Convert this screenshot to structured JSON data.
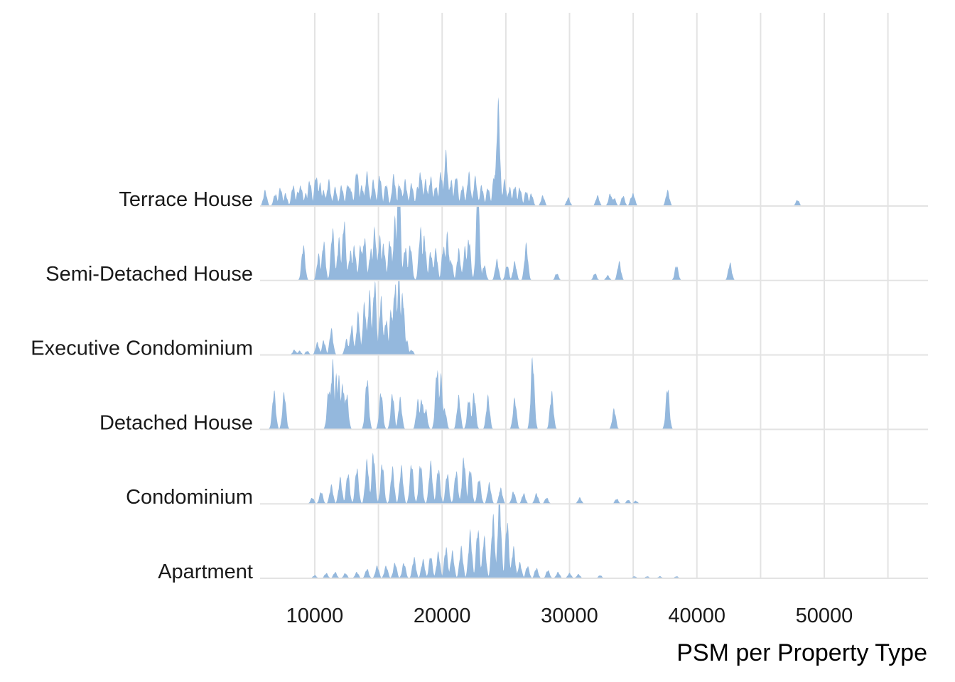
{
  "chart_data": {
    "type": "area",
    "subtype": "ridgeline",
    "title": "",
    "xlabel": "PSM per Property Type",
    "ylabel": "",
    "xlim": [
      5800,
      58000
    ],
    "xticks": [
      10000,
      20000,
      30000,
      40000,
      50000
    ],
    "xtick_labels": [
      "10000",
      "20000",
      "30000",
      "40000",
      "50000"
    ],
    "grid": true,
    "legend": "none",
    "fill_color": "#94b8dd",
    "categories": [
      "Terrace House",
      "Semi-Detached House",
      "Executive Condominium",
      "Detached House",
      "Condominium",
      "Apartment"
    ],
    "series": [
      {
        "name": "Terrace House",
        "peaks": [
          [
            6100,
            0.15
          ],
          [
            6900,
            0.12
          ],
          [
            7300,
            0.18
          ],
          [
            7700,
            0.12
          ],
          [
            8300,
            0.2
          ],
          [
            8700,
            0.15
          ],
          [
            8900,
            0.2
          ],
          [
            9300,
            0.12
          ],
          [
            9600,
            0.25
          ],
          [
            10100,
            0.3
          ],
          [
            10400,
            0.22
          ],
          [
            10700,
            0.15
          ],
          [
            11100,
            0.25
          ],
          [
            11600,
            0.18
          ],
          [
            12100,
            0.2
          ],
          [
            12600,
            0.22
          ],
          [
            12800,
            0.18
          ],
          [
            13300,
            0.35
          ],
          [
            13700,
            0.2
          ],
          [
            14100,
            0.32
          ],
          [
            14600,
            0.25
          ],
          [
            15100,
            0.3
          ],
          [
            15600,
            0.22
          ],
          [
            16200,
            0.3
          ],
          [
            16700,
            0.2
          ],
          [
            17100,
            0.25
          ],
          [
            17600,
            0.22
          ],
          [
            18100,
            0.2
          ],
          [
            18300,
            0.33
          ],
          [
            18700,
            0.25
          ],
          [
            19100,
            0.28
          ],
          [
            19500,
            0.2
          ],
          [
            19900,
            0.33
          ],
          [
            20300,
            0.52
          ],
          [
            20700,
            0.25
          ],
          [
            21100,
            0.3
          ],
          [
            21600,
            0.2
          ],
          [
            22100,
            0.32
          ],
          [
            22600,
            0.28
          ],
          [
            23100,
            0.2
          ],
          [
            23600,
            0.18
          ],
          [
            24100,
            0.32
          ],
          [
            24400,
            1.0
          ],
          [
            24900,
            0.25
          ],
          [
            25300,
            0.18
          ],
          [
            25700,
            0.2
          ],
          [
            26100,
            0.18
          ],
          [
            26600,
            0.15
          ],
          [
            27000,
            0.12
          ],
          [
            27900,
            0.1
          ],
          [
            29900,
            0.08
          ],
          [
            32200,
            0.1
          ],
          [
            33200,
            0.12
          ],
          [
            33500,
            0.08
          ],
          [
            34200,
            0.1
          ],
          [
            34900,
            0.1
          ],
          [
            35000,
            0.12
          ],
          [
            37700,
            0.15
          ],
          [
            47900,
            0.06
          ]
        ]
      },
      {
        "name": "Semi-Detached House",
        "peaks": [
          [
            9100,
            0.34
          ],
          [
            10300,
            0.25
          ],
          [
            10700,
            0.38
          ],
          [
            11400,
            0.5
          ],
          [
            11900,
            0.4
          ],
          [
            12300,
            0.58
          ],
          [
            12800,
            0.28
          ],
          [
            13100,
            0.33
          ],
          [
            13600,
            0.35
          ],
          [
            13900,
            0.42
          ],
          [
            14400,
            0.3
          ],
          [
            14700,
            0.5
          ],
          [
            15100,
            0.42
          ],
          [
            15400,
            0.35
          ],
          [
            15900,
            0.4
          ],
          [
            16300,
            0.6
          ],
          [
            16600,
            1.0
          ],
          [
            17100,
            0.33
          ],
          [
            17500,
            0.35
          ],
          [
            18300,
            0.5
          ],
          [
            18600,
            0.42
          ],
          [
            19100,
            0.28
          ],
          [
            19500,
            0.3
          ],
          [
            20100,
            0.33
          ],
          [
            20400,
            0.45
          ],
          [
            20700,
            0.2
          ],
          [
            21300,
            0.3
          ],
          [
            21800,
            0.32
          ],
          [
            22100,
            0.42
          ],
          [
            22800,
            0.85
          ],
          [
            23300,
            0.15
          ],
          [
            24300,
            0.2
          ],
          [
            25100,
            0.15
          ],
          [
            25700,
            0.18
          ],
          [
            26600,
            0.35
          ],
          [
            29000,
            0.07
          ],
          [
            32000,
            0.07
          ],
          [
            33000,
            0.05
          ],
          [
            33900,
            0.18
          ],
          [
            38400,
            0.15
          ],
          [
            42600,
            0.17
          ]
        ]
      },
      {
        "name": "Executive Condominium",
        "peaks": [
          [
            8400,
            0.05
          ],
          [
            8800,
            0.04
          ],
          [
            9400,
            0.04
          ],
          [
            10200,
            0.12
          ],
          [
            10700,
            0.14
          ],
          [
            11300,
            0.25
          ],
          [
            12500,
            0.15
          ],
          [
            12900,
            0.28
          ],
          [
            13400,
            0.4
          ],
          [
            13900,
            0.5
          ],
          [
            14300,
            0.6
          ],
          [
            14700,
            0.72
          ],
          [
            15200,
            0.55
          ],
          [
            15600,
            0.35
          ],
          [
            16000,
            0.45
          ],
          [
            16300,
            0.7
          ],
          [
            16600,
            0.78
          ],
          [
            16900,
            0.6
          ],
          [
            17200,
            0.15
          ],
          [
            17600,
            0.05
          ]
        ]
      },
      {
        "name": "Detached House",
        "peaks": [
          [
            6800,
            0.37
          ],
          [
            7600,
            0.36
          ],
          [
            11100,
            0.4
          ],
          [
            11400,
            0.66
          ],
          [
            11700,
            0.52
          ],
          [
            11900,
            0.5
          ],
          [
            12200,
            0.45
          ],
          [
            12500,
            0.35
          ],
          [
            14100,
            0.5
          ],
          [
            15200,
            0.37
          ],
          [
            16100,
            0.35
          ],
          [
            16700,
            0.3
          ],
          [
            18100,
            0.28
          ],
          [
            18400,
            0.3
          ],
          [
            18700,
            0.2
          ],
          [
            19600,
            0.6
          ],
          [
            19900,
            0.52
          ],
          [
            20200,
            0.2
          ],
          [
            21300,
            0.32
          ],
          [
            22100,
            0.3
          ],
          [
            22500,
            0.35
          ],
          [
            23600,
            0.32
          ],
          [
            25700,
            0.3
          ],
          [
            27100,
            0.7
          ],
          [
            28600,
            0.36
          ],
          [
            33500,
            0.2
          ],
          [
            37700,
            0.42
          ]
        ]
      },
      {
        "name": "Condominium",
        "peaks": [
          [
            9800,
            0.06
          ],
          [
            10500,
            0.12
          ],
          [
            11300,
            0.18
          ],
          [
            12000,
            0.25
          ],
          [
            12600,
            0.3
          ],
          [
            13300,
            0.35
          ],
          [
            14100,
            0.42
          ],
          [
            14600,
            0.5
          ],
          [
            15300,
            0.4
          ],
          [
            16100,
            0.35
          ],
          [
            16800,
            0.36
          ],
          [
            17600,
            0.4
          ],
          [
            18300,
            0.4
          ],
          [
            19100,
            0.4
          ],
          [
            19700,
            0.35
          ],
          [
            20400,
            0.3
          ],
          [
            21100,
            0.32
          ],
          [
            21700,
            0.45
          ],
          [
            22200,
            0.35
          ],
          [
            22900,
            0.25
          ],
          [
            23700,
            0.2
          ],
          [
            24600,
            0.15
          ],
          [
            25600,
            0.12
          ],
          [
            26400,
            0.1
          ],
          [
            27400,
            0.1
          ],
          [
            28200,
            0.06
          ],
          [
            30800,
            0.06
          ],
          [
            33700,
            0.05
          ],
          [
            34600,
            0.04
          ],
          [
            35200,
            0.03
          ]
        ]
      },
      {
        "name": "Apartment",
        "peaks": [
          [
            10000,
            0.03
          ],
          [
            10900,
            0.05
          ],
          [
            11600,
            0.06
          ],
          [
            12400,
            0.05
          ],
          [
            13300,
            0.06
          ],
          [
            14100,
            0.09
          ],
          [
            14900,
            0.12
          ],
          [
            15600,
            0.12
          ],
          [
            16300,
            0.15
          ],
          [
            17000,
            0.15
          ],
          [
            17800,
            0.2
          ],
          [
            18500,
            0.18
          ],
          [
            19100,
            0.22
          ],
          [
            19700,
            0.25
          ],
          [
            20300,
            0.3
          ],
          [
            20800,
            0.26
          ],
          [
            21500,
            0.3
          ],
          [
            22200,
            0.45
          ],
          [
            22800,
            0.48
          ],
          [
            23300,
            0.4
          ],
          [
            24000,
            0.6
          ],
          [
            24500,
            0.8
          ],
          [
            25100,
            0.55
          ],
          [
            25600,
            0.3
          ],
          [
            26100,
            0.15
          ],
          [
            26700,
            0.12
          ],
          [
            27400,
            0.1
          ],
          [
            28300,
            0.08
          ],
          [
            29100,
            0.06
          ],
          [
            30000,
            0.05
          ],
          [
            30700,
            0.04
          ],
          [
            32400,
            0.03
          ],
          [
            35100,
            0.02
          ],
          [
            36100,
            0.02
          ],
          [
            37100,
            0.02
          ],
          [
            38400,
            0.02
          ]
        ]
      }
    ]
  }
}
